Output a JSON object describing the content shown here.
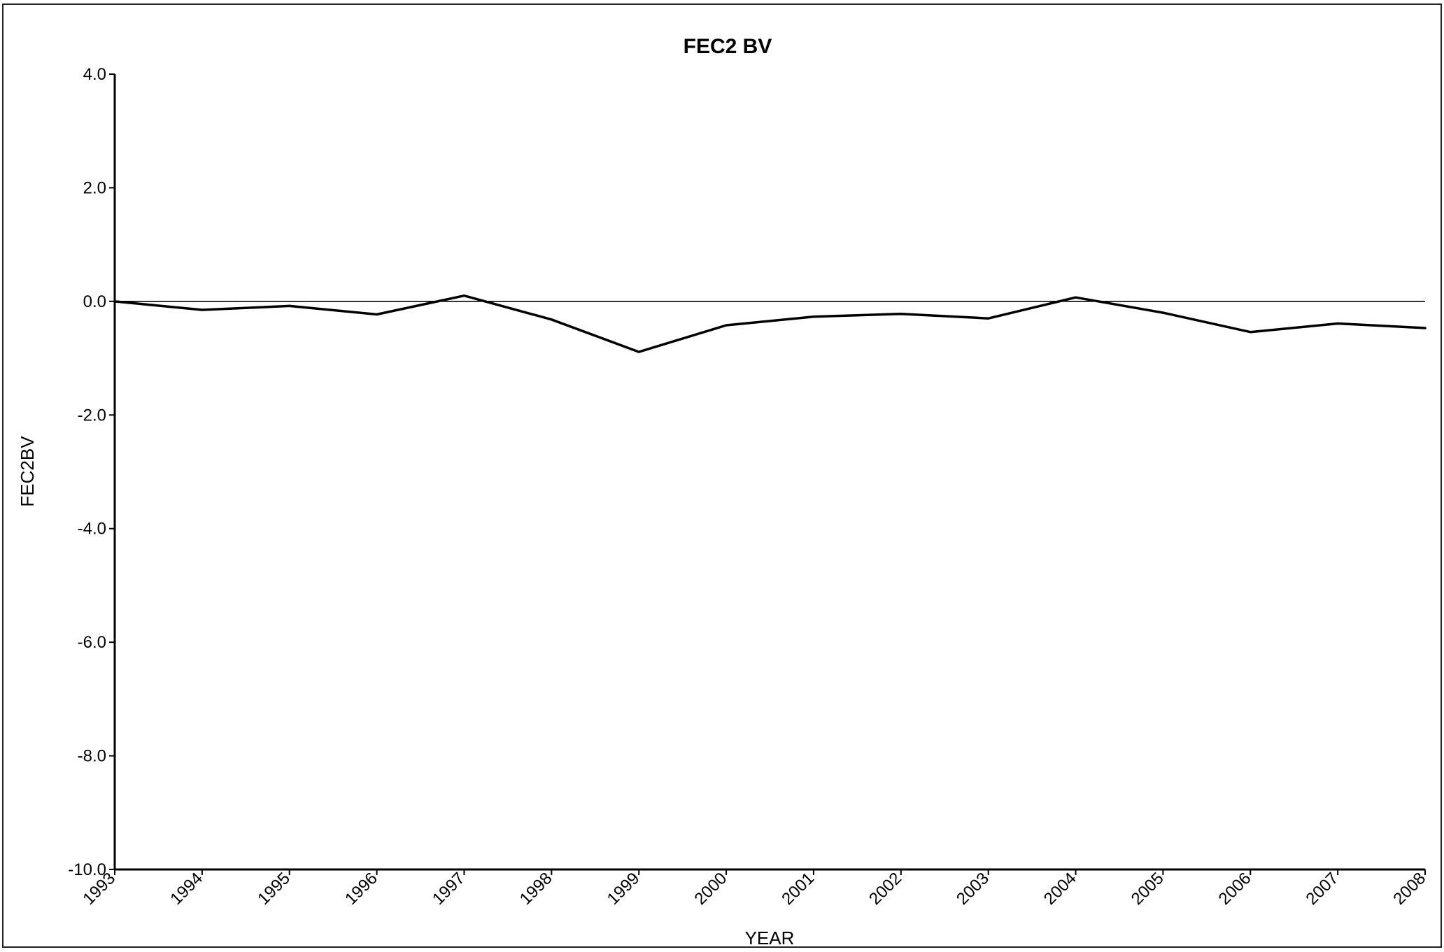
{
  "chart_data": {
    "type": "line",
    "title": "FEC2 BV",
    "xlabel": "YEAR",
    "ylabel": "FEC2BV",
    "ylim": [
      -10.0,
      4.0
    ],
    "yticks": [
      "4.0",
      "2.0",
      "0.0",
      "-2.0",
      "-4.0",
      "-6.0",
      "-8.0",
      "-10.0"
    ],
    "reference_line_y": 0.0,
    "categories": [
      "1993",
      "1994",
      "1995",
      "1996",
      "1997",
      "1998",
      "1999",
      "2000",
      "2001",
      "2002",
      "2003",
      "2004",
      "2005",
      "2006",
      "2007",
      "2008"
    ],
    "series": [
      {
        "values": [
          0.0,
          -0.15,
          -0.08,
          -0.23,
          0.1,
          -0.32,
          -0.89,
          -0.42,
          -0.27,
          -0.22,
          -0.3,
          0.07,
          -0.2,
          -0.54,
          -0.39,
          -0.47
        ]
      }
    ],
    "grid": false,
    "colors": {
      "line": "#000000",
      "axis": "#000000",
      "frame": "#222222"
    }
  }
}
